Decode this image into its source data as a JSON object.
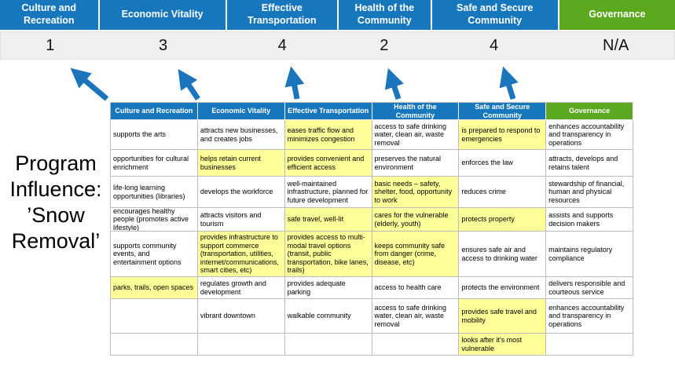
{
  "title": "Program Influence: ’Snow Removal’",
  "colors": {
    "header_blue": "#1777bd",
    "header_green": "#5ca81e",
    "highlight_yellow": "#ffff99",
    "arrow_blue": "#1b75bc",
    "score_band_gray": "#efefef"
  },
  "scoreboard": [
    {
      "label": "Culture and Recreation",
      "score": "1",
      "theme": "blue"
    },
    {
      "label": "Economic Vitality",
      "score": "3",
      "theme": "blue"
    },
    {
      "label": "Effective Transportation",
      "score": "4",
      "theme": "blue"
    },
    {
      "label": "Health of the Community",
      "score": "2",
      "theme": "blue"
    },
    {
      "label": "Safe and Secure Community",
      "score": "4",
      "theme": "blue"
    },
    {
      "label": "Governance",
      "score": "N/A",
      "theme": "green"
    }
  ],
  "matrix": {
    "headers": [
      {
        "label": "Culture and Recreation",
        "theme": "blue"
      },
      {
        "label": "Economic Vitality",
        "theme": "blue"
      },
      {
        "label": "Effective Transportation",
        "theme": "blue"
      },
      {
        "label": "Health of the Community",
        "theme": "blue"
      },
      {
        "label": "Safe and Secure Community",
        "theme": "blue"
      },
      {
        "label": "Governance",
        "theme": "green"
      }
    ],
    "rows": [
      [
        {
          "text": "supports the arts",
          "highlight": false
        },
        {
          "text": "attracts new businesses, and creates jobs",
          "highlight": false
        },
        {
          "text": "eases traffic flow and minimizes congestion",
          "highlight": true
        },
        {
          "text": "access to safe drinking water, clean air, waste removal",
          "highlight": false
        },
        {
          "text": "is prepared to respond to emergencies",
          "highlight": true
        },
        {
          "text": "enhances accountability and transparency in operations",
          "highlight": false
        }
      ],
      [
        {
          "text": "opportunities for cultural enrichment",
          "highlight": false
        },
        {
          "text": "helps retain current businesses",
          "highlight": true
        },
        {
          "text": "provides convenient and efficient access",
          "highlight": true
        },
        {
          "text": "preserves the natural environment",
          "highlight": false
        },
        {
          "text": "enforces the law",
          "highlight": false
        },
        {
          "text": "attracts, develops and retains talent",
          "highlight": false
        }
      ],
      [
        {
          "text": "life-long learning opportunities (libraries)",
          "highlight": false
        },
        {
          "text": "develops the workforce",
          "highlight": false
        },
        {
          "text": "well-maintained infrastructure, planned for future development",
          "highlight": false
        },
        {
          "text": "basic needs – safety, shelter, food, opportunity to work",
          "highlight": true
        },
        {
          "text": "reduces crime",
          "highlight": false
        },
        {
          "text": "stewardship of financial, human and physical resources",
          "highlight": false
        }
      ],
      [
        {
          "text": "encourages healthy people (promotes active lifestyle)",
          "highlight": false
        },
        {
          "text": "attracts visitors and tourism",
          "highlight": false
        },
        {
          "text": "safe travel, well-lit",
          "highlight": true
        },
        {
          "text": "cares for the vulnerable (elderly, youth)",
          "highlight": true
        },
        {
          "text": "protects property",
          "highlight": true
        },
        {
          "text": "assists and supports decision makers",
          "highlight": false
        }
      ],
      [
        {
          "text": "supports community events, and entertainment options",
          "highlight": false
        },
        {
          "text": "provides infrastructure to support commerce (transportation, utilities, internet/communications, smart cities, etc)",
          "highlight": true
        },
        {
          "text": "provides access to multi-modal travel options (transit, public transportation, bike lanes, trails)",
          "highlight": true
        },
        {
          "text": "keeps community safe from danger (crime, disease, etc)",
          "highlight": true
        },
        {
          "text": "ensures safe air and access to drinking water",
          "highlight": false
        },
        {
          "text": "maintains regulatory compliance",
          "highlight": false
        }
      ],
      [
        {
          "text": "parks, trails, open spaces",
          "highlight": true
        },
        {
          "text": "regulates growth and development",
          "highlight": false
        },
        {
          "text": "provides adequate parking",
          "highlight": false
        },
        {
          "text": "access to health care",
          "highlight": false
        },
        {
          "text": "protects the environment",
          "highlight": false
        },
        {
          "text": "delivers responsible and courteous service",
          "highlight": false
        }
      ],
      [
        {
          "text": "",
          "highlight": false
        },
        {
          "text": "vibrant downtown",
          "highlight": false
        },
        {
          "text": "walkable community",
          "highlight": false
        },
        {
          "text": "access to safe drinking water, clean air, waste removal",
          "highlight": false
        },
        {
          "text": "provides safe travel and mobility",
          "highlight": true
        },
        {
          "text": "enhances accountability and transparency in operations",
          "highlight": false
        }
      ],
      [
        {
          "text": "",
          "highlight": false
        },
        {
          "text": "",
          "highlight": false
        },
        {
          "text": "",
          "highlight": false
        },
        {
          "text": "",
          "highlight": false
        },
        {
          "text": "looks after it's most vulnerable",
          "highlight": true
        },
        {
          "text": "",
          "highlight": false
        }
      ]
    ]
  }
}
